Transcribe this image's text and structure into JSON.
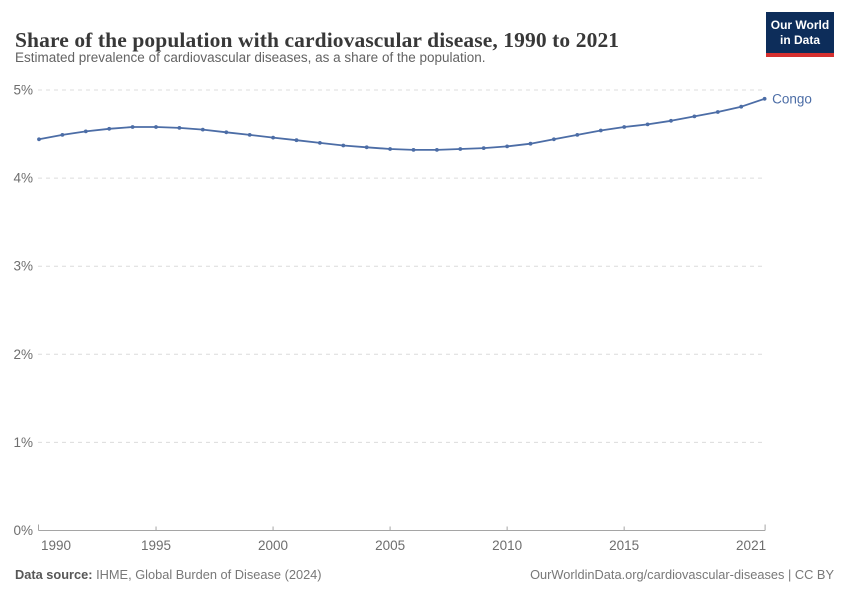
{
  "header": {
    "title": "Share of the population with cardiovascular disease, 1990 to 2021",
    "subtitle": "Estimated prevalence of cardiovascular diseases, as a share of the population.",
    "logo": {
      "line1": "Our World",
      "line2": "in Data",
      "bg_color": "#0d2d5a",
      "bar_color": "#d6302f"
    }
  },
  "chart_data": {
    "type": "line",
    "title": "Share of the population with cardiovascular disease, 1990 to 2021",
    "xlabel": "",
    "ylabel": "",
    "xlim": [
      1990,
      2021
    ],
    "ylim": [
      0,
      5
    ],
    "grid": "horizontal-dashed",
    "legend_position": "end-of-line",
    "x_ticks": [
      1990,
      1995,
      2000,
      2005,
      2010,
      2015,
      2021
    ],
    "y_ticks": [
      {
        "value": 0,
        "label": "0%"
      },
      {
        "value": 1,
        "label": "1%"
      },
      {
        "value": 2,
        "label": "2%"
      },
      {
        "value": 3,
        "label": "3%"
      },
      {
        "value": 4,
        "label": "4%"
      },
      {
        "value": 5,
        "label": "5%"
      }
    ],
    "x": [
      1990,
      1991,
      1992,
      1993,
      1994,
      1995,
      1996,
      1997,
      1998,
      1999,
      2000,
      2001,
      2002,
      2003,
      2004,
      2005,
      2006,
      2007,
      2008,
      2009,
      2010,
      2011,
      2012,
      2013,
      2014,
      2015,
      2016,
      2017,
      2018,
      2019,
      2020,
      2021
    ],
    "series": [
      {
        "name": "Congo",
        "color": "#4c6da6",
        "values": [
          4.44,
          4.49,
          4.53,
          4.56,
          4.58,
          4.58,
          4.57,
          4.55,
          4.52,
          4.49,
          4.46,
          4.43,
          4.4,
          4.37,
          4.35,
          4.33,
          4.32,
          4.32,
          4.33,
          4.34,
          4.36,
          4.39,
          4.44,
          4.49,
          4.54,
          4.58,
          4.61,
          4.65,
          4.7,
          4.75,
          4.81,
          4.9
        ]
      }
    ],
    "end_label": "Congo",
    "colors": {
      "grid": "#dcdcdc",
      "axis": "#a5a5a5",
      "tick_label": "#6e6e6e"
    }
  },
  "footer": {
    "data_source_label": "Data source:",
    "data_source_value": " IHME, Global Burden of Disease (2024)",
    "attribution": "OurWorldinData.org/cardiovascular-diseases | CC BY"
  }
}
